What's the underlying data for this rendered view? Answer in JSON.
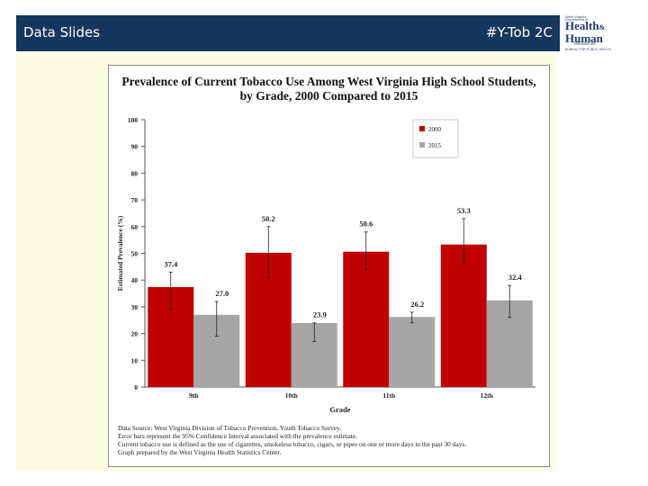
{
  "header": {
    "left_title": "Data Slides",
    "right_title": "#Y-Tob 2C"
  },
  "logo": {
    "small_lines": [
      "West Virginia",
      "Department of"
    ],
    "main_line_1": "Health",
    "amp": "&",
    "main_line_2": "Human",
    "sub_line": "Resources",
    "bottom_line": "BUREAU FOR PUBLIC HEALTH"
  },
  "colors": {
    "header_bg": "#17365d",
    "slide_bg": "#fdfde6",
    "series_2000": "#c00000",
    "series_2015": "#a6a6a6"
  },
  "chart_data": {
    "type": "bar",
    "title": "Prevalence of Current Tobacco Use Among West Virginia High School Students, by Grade, 2000 Compared to 2015",
    "title_lines": [
      "Prevalence of Current Tobacco Use Among West Virginia High School Students,",
      "by Grade, 2000 Compared to 2015"
    ],
    "xlabel": "Grade",
    "ylabel": "Estimated Prevalence (%)",
    "ylim": [
      0,
      100
    ],
    "yticks": [
      0,
      10,
      20,
      30,
      40,
      50,
      60,
      70,
      80,
      90,
      100
    ],
    "grid": false,
    "legend_position": "top-right",
    "categories": [
      "9th",
      "10th",
      "11th",
      "12th"
    ],
    "series": [
      {
        "name": "2000",
        "color": "#c00000",
        "values": [
          37.4,
          50.2,
          50.6,
          53.3
        ],
        "labels": [
          "37.4",
          "50.2",
          "50.6",
          "53.3"
        ],
        "ci_low": [
          29.0,
          41.0,
          44.0,
          46.0
        ],
        "ci_high": [
          43.0,
          60.0,
          58.0,
          63.0
        ]
      },
      {
        "name": "2015",
        "color": "#a6a6a6",
        "values": [
          27.0,
          23.9,
          26.2,
          32.4
        ],
        "labels": [
          "27.0",
          "23.9",
          "26.2",
          "32.4"
        ],
        "ci_low": [
          19.0,
          17.0,
          24.0,
          26.0
        ],
        "ci_high": [
          32.0,
          24.0,
          28.0,
          38.0
        ]
      }
    ],
    "notes": [
      "Data Source: West Virginia Division of Tobacco Prevention, Youth Tobacco Survey.",
      "Error bars represent the 95% Confidence Interval associated with the prevalence estimate.",
      "Current tobacco use is defined as the use of cigarettes, smokeless tobacco, cigars, or pipes on one or more days in the past 30 days.",
      "Graph prepared by the West Virginia Health Statistics Center."
    ]
  }
}
